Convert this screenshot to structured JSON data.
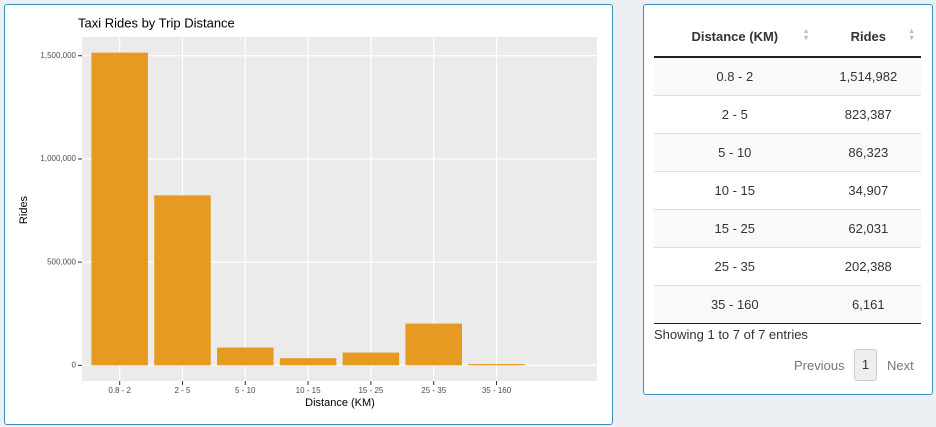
{
  "chart_data": {
    "type": "bar",
    "title": "Taxi Rides by Trip Distance",
    "x_label": "Distance (KM)",
    "y_label": "Rides",
    "categories": [
      "0.8 - 2",
      "2 - 5",
      "5 - 10",
      "10 - 15",
      "15 - 25",
      "25 - 35",
      "35 - 160"
    ],
    "values": [
      1514982,
      823387,
      86323,
      34907,
      62031,
      202388,
      6161
    ],
    "color": "#e69a22",
    "ylim": [
      -75749,
      1590731
    ],
    "yticks": [
      0,
      {
        "value": 500000,
        "label": "500,000"
      },
      {
        "value": 1000000,
        "label": "1,000,000"
      },
      {
        "value": 1500000,
        "label": "1,500,000"
      }
    ],
    "grid": true
  },
  "table": {
    "columns": [
      "Distance (KM)",
      "Rides"
    ],
    "rows": [
      [
        "0.8 - 2",
        "1,514,982"
      ],
      [
        "2 - 5",
        "823,387"
      ],
      [
        "5 - 10",
        "86,323"
      ],
      [
        "10 - 15",
        "34,907"
      ],
      [
        "15 - 25",
        "62,031"
      ],
      [
        "25 - 35",
        "202,388"
      ],
      [
        "35 - 160",
        "6,161"
      ]
    ]
  },
  "table_info": "Showing 1 to 7 of 7 entries",
  "pagination": {
    "previous": "Previous",
    "current": "1",
    "next": "Next"
  }
}
